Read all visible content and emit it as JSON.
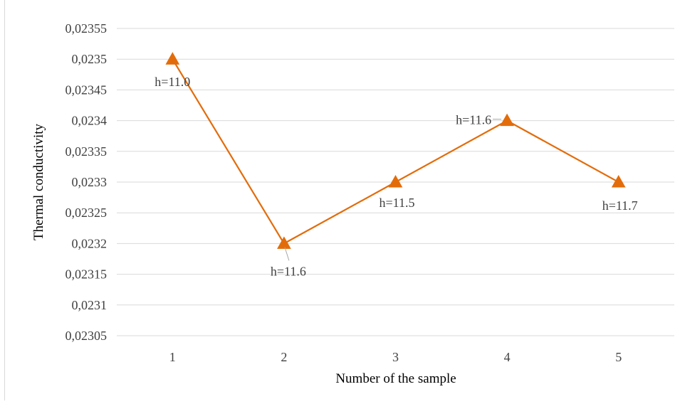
{
  "chart_data": {
    "type": "line",
    "x": [
      1,
      2,
      3,
      4,
      5
    ],
    "categories": [
      "1",
      "2",
      "3",
      "4",
      "5"
    ],
    "series": [
      {
        "values": [
          0.0235,
          0.0232,
          0.0233,
          0.0234,
          0.0233
        ],
        "point_labels": [
          "h=11.0",
          "h=11.6",
          "h=11.5",
          "h=11.6",
          "h=11.7"
        ],
        "color": "#e36c0a",
        "marker": "triangle"
      }
    ],
    "xlabel": "Number of the sample",
    "ylabel": "Thermal conductivity",
    "ylim": [
      0.02305,
      0.02355
    ],
    "yticks": [
      "0,02305",
      "0,0231",
      "0,02315",
      "0,0232",
      "0,02325",
      "0,0233",
      "0,02335",
      "0,0234",
      "0,02345",
      "0,0235",
      "0,02355"
    ],
    "grid": true,
    "legend": "none"
  }
}
